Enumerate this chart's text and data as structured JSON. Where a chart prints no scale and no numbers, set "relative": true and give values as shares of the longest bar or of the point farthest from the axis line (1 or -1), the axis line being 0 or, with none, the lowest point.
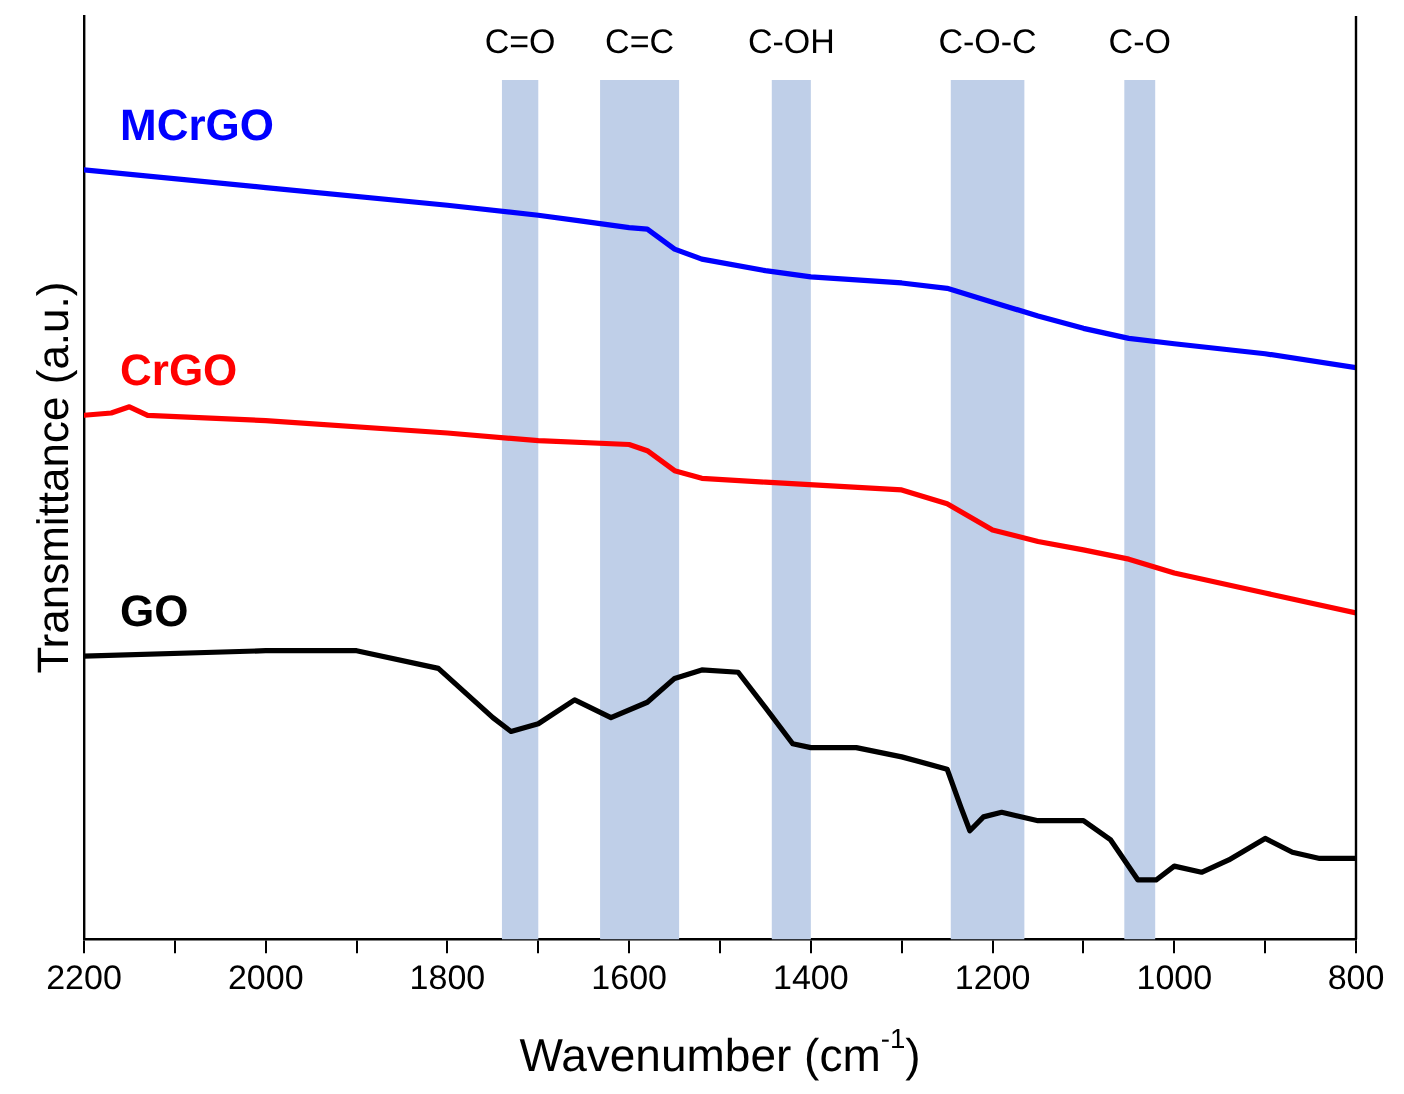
{
  "chart_data": {
    "type": "line",
    "relative": true,
    "xlabel": "Wavenumber (cm$^{-1}$)",
    "ylabel": "Transmittance (a.u.)",
    "xlim": [
      2200,
      800
    ],
    "xticks": [
      2200,
      {
        "value": 2100,
        "label": null
      },
      2000,
      {
        "value": 1900,
        "label": null
      },
      1800,
      {
        "value": 1700,
        "label": null
      },
      1600,
      {
        "value": 1500,
        "label": null
      },
      1400,
      {
        "value": 1300,
        "label": null
      },
      1200,
      {
        "value": 1100,
        "label": null
      },
      1000,
      {
        "value": 900,
        "label": null
      },
      800
    ],
    "tick_labels": "x",
    "grid": false,
    "legend": false,
    "bands": [
      {
        "axis": "x",
        "from": 1740,
        "to": 1700,
        "label": "C=O",
        "color": "#bfcfe8"
      },
      {
        "axis": "x",
        "from": 1632,
        "to": 1545,
        "label": "C=C",
        "color": "#bfcfe8"
      },
      {
        "axis": "x",
        "from": 1443,
        "to": 1400,
        "label": "C-OH",
        "color": "#bfcfe8"
      },
      {
        "axis": "x",
        "from": 1246,
        "to": 1165,
        "label": "C-O-C",
        "color": "#bfcfe8"
      },
      {
        "axis": "x",
        "from": 1055,
        "to": 1021,
        "label": "C-O",
        "color": "#bfcfe8"
      }
    ],
    "series": [
      {
        "name": "MCrGO",
        "color": "#0000ff",
        "x": [
          2200,
          2000,
          1800,
          1700,
          1650,
          1600,
          1580,
          1550,
          1520,
          1450,
          1400,
          1300,
          1250,
          1200,
          1150,
          1100,
          1050,
          1000,
          900,
          800
        ],
        "values": [
          1.0,
          0.977,
          0.954,
          0.941,
          0.933,
          0.925,
          0.923,
          0.897,
          0.884,
          0.869,
          0.861,
          0.853,
          0.846,
          0.828,
          0.81,
          0.794,
          0.781,
          0.774,
          0.761,
          0.743
        ]
      },
      {
        "name": "CrGO",
        "color": "#ff0000",
        "x": [
          2200,
          2170,
          2150,
          2130,
          2000,
          1800,
          1700,
          1600,
          1580,
          1550,
          1520,
          1450,
          1300,
          1250,
          1200,
          1150,
          1100,
          1050,
          1000,
          900,
          800
        ],
        "values": [
          0.681,
          0.684,
          0.692,
          0.681,
          0.674,
          0.658,
          0.648,
          0.643,
          0.635,
          0.609,
          0.599,
          0.594,
          0.584,
          0.566,
          0.532,
          0.517,
          0.506,
          0.494,
          0.476,
          0.45,
          0.424
        ]
      },
      {
        "name": "GO",
        "color": "#000000",
        "x": [
          2200,
          2000,
          1900,
          1810,
          1750,
          1730,
          1700,
          1660,
          1620,
          1580,
          1550,
          1520,
          1480,
          1450,
          1420,
          1400,
          1350,
          1300,
          1250,
          1235,
          1225,
          1210,
          1190,
          1150,
          1100,
          1070,
          1040,
          1020,
          1000,
          970,
          940,
          900,
          870,
          840,
          800
        ],
        "values": [
          0.368,
          0.375,
          0.375,
          0.352,
          0.288,
          0.27,
          0.28,
          0.311,
          0.288,
          0.308,
          0.339,
          0.35,
          0.347,
          0.301,
          0.254,
          0.249,
          0.249,
          0.237,
          0.221,
          0.172,
          0.141,
          0.159,
          0.165,
          0.154,
          0.154,
          0.129,
          0.077,
          0.077,
          0.095,
          0.087,
          0.103,
          0.131,
          0.113,
          0.105,
          0.105
        ]
      }
    ]
  }
}
